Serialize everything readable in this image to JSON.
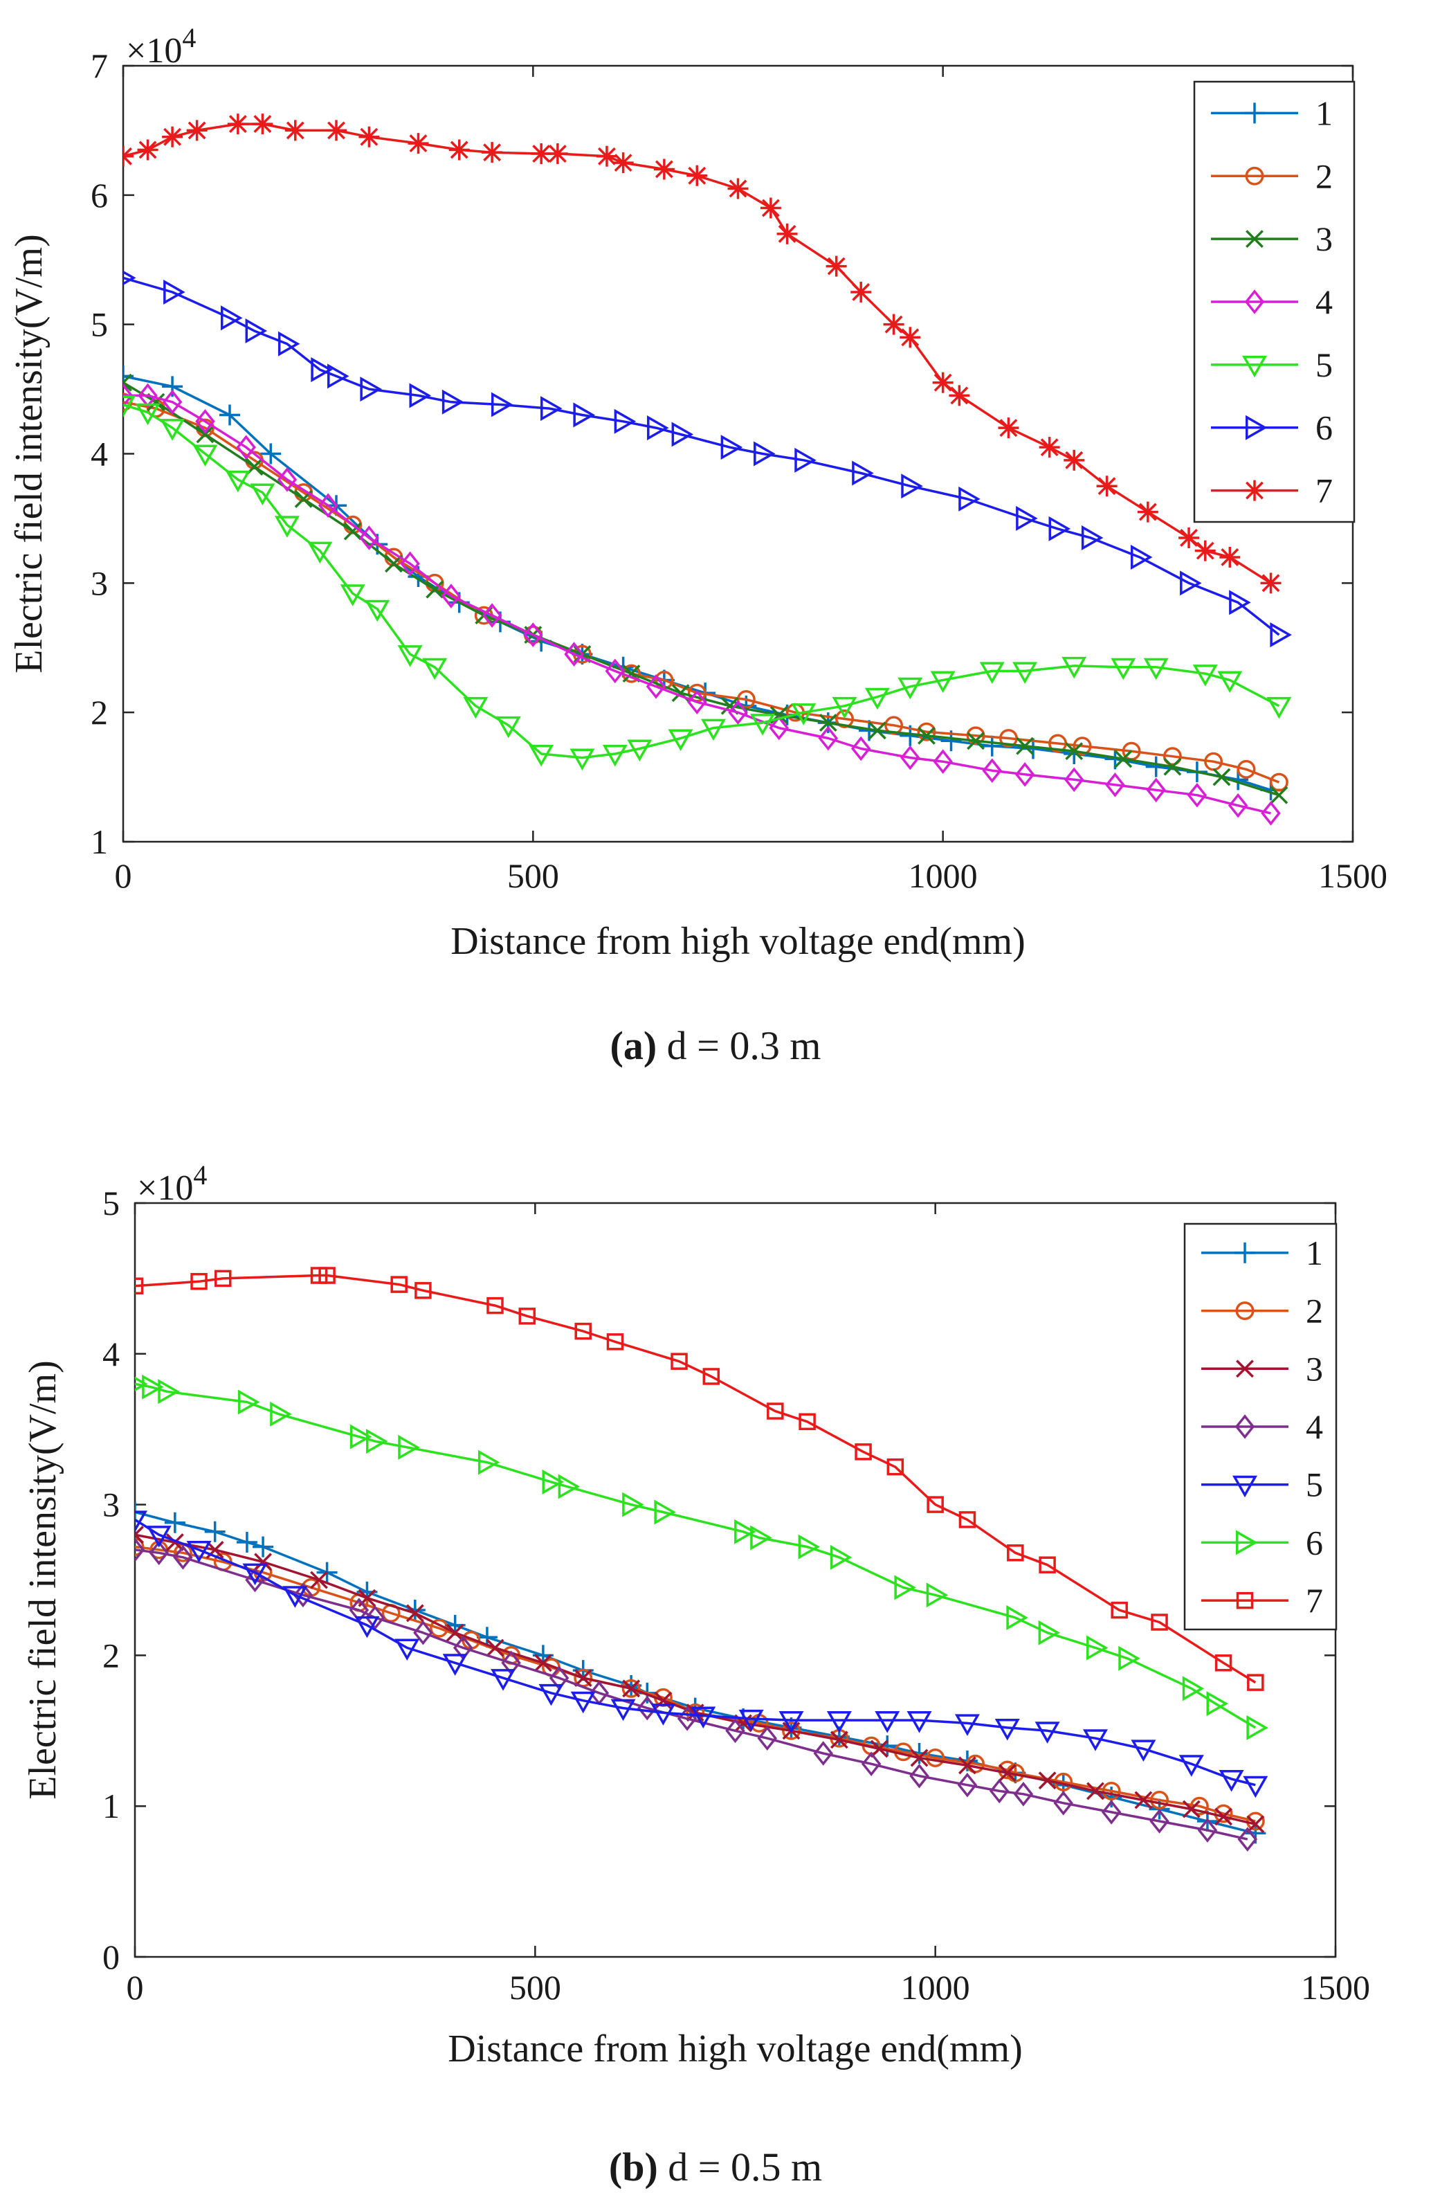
{
  "chart_data": [
    {
      "type": "line",
      "caption_bold": "(a)",
      "caption_rest": " d = 0.3 m",
      "xlabel": "Distance from high voltage end(mm)",
      "ylabel": "Electric field intensity(V/m)",
      "y_multiplier": "×10",
      "y_multiplier_exp": "4",
      "xlim": [
        0,
        1500
      ],
      "ylim": [
        1,
        7
      ],
      "x_ticks": [
        "0",
        "500",
        "1000",
        "1500"
      ],
      "y_ticks": [
        "1",
        "2",
        "3",
        "4",
        "5",
        "6",
        "7"
      ],
      "legend_position": "top-right",
      "series": [
        {
          "name": "1",
          "color": "#0072BD",
          "marker": "plus",
          "x": [
            0,
            60,
            130,
            180,
            260,
            310,
            360,
            410,
            460,
            510,
            560,
            610,
            660,
            710,
            760,
            810,
            860,
            910,
            960,
            1010,
            1060,
            1110,
            1160,
            1210,
            1260,
            1310,
            1360,
            1400
          ],
          "y": [
            4.6,
            4.52,
            4.3,
            4.0,
            3.6,
            3.3,
            3.05,
            2.85,
            2.7,
            2.55,
            2.45,
            2.35,
            2.25,
            2.15,
            2.05,
            1.98,
            1.92,
            1.86,
            1.82,
            1.78,
            1.74,
            1.72,
            1.68,
            1.64,
            1.58,
            1.54,
            1.48,
            1.4
          ]
        },
        {
          "name": "2",
          "color": "#D95319",
          "marker": "circle",
          "x": [
            0,
            40,
            100,
            160,
            220,
            280,
            330,
            380,
            440,
            500,
            560,
            620,
            660,
            700,
            760,
            820,
            880,
            940,
            980,
            1040,
            1080,
            1140,
            1170,
            1230,
            1280,
            1330,
            1370,
            1410
          ],
          "y": [
            4.4,
            4.35,
            4.2,
            3.95,
            3.7,
            3.45,
            3.2,
            3.0,
            2.75,
            2.6,
            2.45,
            2.3,
            2.25,
            2.15,
            2.1,
            2.0,
            1.95,
            1.9,
            1.85,
            1.82,
            1.8,
            1.76,
            1.74,
            1.7,
            1.66,
            1.62,
            1.56,
            1.46
          ]
        },
        {
          "name": "3",
          "color": "#217E1E",
          "marker": "x",
          "x": [
            0,
            40,
            100,
            160,
            220,
            280,
            330,
            380,
            440,
            500,
            560,
            620,
            680,
            740,
            800,
            860,
            920,
            980,
            1040,
            1100,
            1160,
            1220,
            1280,
            1340,
            1410
          ],
          "y": [
            4.55,
            4.4,
            4.15,
            3.9,
            3.65,
            3.4,
            3.15,
            2.95,
            2.75,
            2.6,
            2.45,
            2.3,
            2.15,
            2.05,
            1.98,
            1.92,
            1.86,
            1.82,
            1.78,
            1.74,
            1.7,
            1.64,
            1.58,
            1.5,
            1.36
          ]
        },
        {
          "name": "4",
          "color": "#D71FD6",
          "marker": "diamond",
          "x": [
            0,
            30,
            60,
            100,
            150,
            200,
            250,
            300,
            350,
            400,
            450,
            500,
            550,
            600,
            650,
            700,
            750,
            800,
            860,
            900,
            960,
            1000,
            1060,
            1100,
            1160,
            1210,
            1260,
            1310,
            1360,
            1400
          ],
          "y": [
            4.45,
            4.45,
            4.4,
            4.25,
            4.05,
            3.8,
            3.6,
            3.35,
            3.15,
            2.9,
            2.75,
            2.6,
            2.45,
            2.32,
            2.2,
            2.08,
            2.0,
            1.88,
            1.8,
            1.72,
            1.65,
            1.62,
            1.55,
            1.52,
            1.48,
            1.44,
            1.4,
            1.36,
            1.28,
            1.22
          ]
        },
        {
          "name": "5",
          "color": "#2CE21F",
          "marker": "triangle-down",
          "x": [
            0,
            30,
            60,
            100,
            140,
            170,
            200,
            240,
            280,
            310,
            350,
            380,
            430,
            470,
            510,
            560,
            600,
            630,
            680,
            720,
            780,
            830,
            880,
            920,
            960,
            1000,
            1060,
            1100,
            1160,
            1220,
            1260,
            1320,
            1350,
            1410
          ],
          "y": [
            4.38,
            4.32,
            4.2,
            4.0,
            3.8,
            3.7,
            3.45,
            3.25,
            2.92,
            2.8,
            2.45,
            2.35,
            2.05,
            1.9,
            1.68,
            1.65,
            1.68,
            1.72,
            1.8,
            1.88,
            1.92,
            2.0,
            2.05,
            2.12,
            2.2,
            2.25,
            2.32,
            2.32,
            2.36,
            2.35,
            2.35,
            2.3,
            2.25,
            2.05
          ]
        },
        {
          "name": "6",
          "color": "#1C1CEB",
          "marker": "triangle-right",
          "x": [
            0,
            60,
            130,
            160,
            200,
            240,
            260,
            300,
            360,
            400,
            460,
            520,
            560,
            610,
            650,
            680,
            740,
            780,
            830,
            900,
            960,
            1030,
            1100,
            1140,
            1180,
            1240,
            1300,
            1360,
            1410
          ],
          "y": [
            5.36,
            5.25,
            5.05,
            4.95,
            4.85,
            4.65,
            4.6,
            4.5,
            4.45,
            4.4,
            4.38,
            4.35,
            4.3,
            4.25,
            4.2,
            4.15,
            4.05,
            4.0,
            3.95,
            3.85,
            3.75,
            3.65,
            3.5,
            3.42,
            3.35,
            3.2,
            3.0,
            2.85,
            2.6
          ]
        },
        {
          "name": "7",
          "color": "#E81A1A",
          "marker": "asterisk",
          "x": [
            0,
            30,
            60,
            90,
            140,
            170,
            210,
            260,
            300,
            360,
            410,
            450,
            510,
            530,
            590,
            610,
            660,
            700,
            750,
            790,
            810,
            870,
            900,
            940,
            960,
            1000,
            1020,
            1080,
            1130,
            1160,
            1200,
            1250,
            1300,
            1320,
            1350,
            1400
          ],
          "y": [
            6.3,
            6.35,
            6.45,
            6.5,
            6.55,
            6.55,
            6.5,
            6.5,
            6.45,
            6.4,
            6.35,
            6.33,
            6.32,
            6.32,
            6.3,
            6.25,
            6.2,
            6.15,
            6.05,
            5.9,
            5.7,
            5.45,
            5.25,
            5.0,
            4.9,
            4.55,
            4.45,
            4.2,
            4.05,
            3.95,
            3.75,
            3.55,
            3.35,
            3.25,
            3.2,
            3.0
          ]
        }
      ]
    },
    {
      "type": "line",
      "caption_bold": "(b)",
      "caption_rest": " d = 0.5 m",
      "xlabel": "Distance from high voltage end(mm)",
      "ylabel": "Electric field intensity(V/m)",
      "y_multiplier": "×10",
      "y_multiplier_exp": "4",
      "xlim": [
        0,
        1500
      ],
      "ylim": [
        0,
        5
      ],
      "x_ticks": [
        "0",
        "500",
        "1000",
        "1500"
      ],
      "y_ticks": [
        "0",
        "1",
        "2",
        "3",
        "4",
        "5"
      ],
      "legend_position": "top-right",
      "series": [
        {
          "name": "1",
          "color": "#0072BD",
          "marker": "plus",
          "x": [
            0,
            50,
            100,
            140,
            160,
            240,
            290,
            350,
            400,
            440,
            510,
            560,
            620,
            640,
            700,
            760,
            820,
            880,
            940,
            980,
            1040,
            1100,
            1160,
            1220,
            1280,
            1340,
            1400
          ],
          "y": [
            2.95,
            2.88,
            2.82,
            2.75,
            2.72,
            2.55,
            2.42,
            2.3,
            2.2,
            2.12,
            2.0,
            1.9,
            1.8,
            1.75,
            1.65,
            1.58,
            1.52,
            1.46,
            1.4,
            1.35,
            1.3,
            1.22,
            1.14,
            1.06,
            0.98,
            0.9,
            0.82
          ]
        },
        {
          "name": "2",
          "color": "#D95319",
          "marker": "circle",
          "x": [
            0,
            30,
            60,
            110,
            160,
            220,
            280,
            320,
            380,
            420,
            470,
            520,
            560,
            620,
            660,
            700,
            780,
            820,
            880,
            920,
            960,
            1000,
            1050,
            1090,
            1100,
            1160,
            1220,
            1280,
            1330,
            1360,
            1400
          ],
          "y": [
            2.72,
            2.7,
            2.68,
            2.62,
            2.55,
            2.45,
            2.35,
            2.28,
            2.18,
            2.1,
            2.0,
            1.92,
            1.85,
            1.78,
            1.72,
            1.62,
            1.55,
            1.5,
            1.45,
            1.4,
            1.36,
            1.32,
            1.28,
            1.24,
            1.22,
            1.16,
            1.1,
            1.04,
            1.0,
            0.95,
            0.9
          ]
        },
        {
          "name": "3",
          "color": "#A2142F",
          "marker": "x",
          "x": [
            0,
            50,
            100,
            160,
            230,
            290,
            350,
            400,
            450,
            510,
            560,
            620,
            660,
            700,
            760,
            820,
            880,
            930,
            980,
            1040,
            1090,
            1140,
            1200,
            1260,
            1320,
            1360,
            1400
          ],
          "y": [
            2.8,
            2.75,
            2.7,
            2.62,
            2.5,
            2.38,
            2.28,
            2.15,
            2.05,
            1.95,
            1.85,
            1.78,
            1.7,
            1.62,
            1.55,
            1.5,
            1.44,
            1.38,
            1.32,
            1.27,
            1.22,
            1.17,
            1.1,
            1.04,
            0.98,
            0.93,
            0.88
          ]
        },
        {
          "name": "4",
          "color": "#7E2F8E",
          "marker": "diamond",
          "x": [
            0,
            30,
            60,
            150,
            210,
            280,
            300,
            360,
            410,
            470,
            530,
            580,
            640,
            690,
            750,
            790,
            860,
            920,
            980,
            1040,
            1080,
            1110,
            1160,
            1220,
            1280,
            1340,
            1390
          ],
          "y": [
            2.7,
            2.68,
            2.65,
            2.5,
            2.4,
            2.3,
            2.25,
            2.15,
            2.05,
            1.95,
            1.85,
            1.75,
            1.65,
            1.58,
            1.5,
            1.45,
            1.35,
            1.28,
            1.2,
            1.14,
            1.1,
            1.08,
            1.02,
            0.96,
            0.9,
            0.84,
            0.78
          ]
        },
        {
          "name": "5",
          "color": "#1C1CEB",
          "marker": "triangle-down",
          "x": [
            0,
            30,
            80,
            150,
            200,
            290,
            340,
            400,
            460,
            520,
            560,
            610,
            660,
            710,
            770,
            820,
            880,
            940,
            980,
            1040,
            1090,
            1140,
            1200,
            1260,
            1320,
            1370,
            1400
          ],
          "y": [
            2.9,
            2.8,
            2.7,
            2.55,
            2.4,
            2.2,
            2.05,
            1.95,
            1.85,
            1.75,
            1.7,
            1.65,
            1.62,
            1.6,
            1.58,
            1.57,
            1.57,
            1.57,
            1.57,
            1.55,
            1.52,
            1.5,
            1.45,
            1.38,
            1.28,
            1.18,
            1.14
          ]
        },
        {
          "name": "6",
          "color": "#2CE21F",
          "marker": "triangle-right",
          "x": [
            0,
            20,
            40,
            140,
            180,
            280,
            300,
            340,
            440,
            520,
            540,
            620,
            660,
            760,
            780,
            840,
            880,
            960,
            1000,
            1100,
            1140,
            1200,
            1240,
            1320,
            1350,
            1400
          ],
          "y": [
            3.8,
            3.78,
            3.75,
            3.68,
            3.6,
            3.45,
            3.42,
            3.38,
            3.28,
            3.15,
            3.12,
            3.0,
            2.95,
            2.82,
            2.78,
            2.72,
            2.65,
            2.45,
            2.4,
            2.25,
            2.15,
            2.05,
            1.98,
            1.78,
            1.68,
            1.52
          ]
        },
        {
          "name": "7",
          "color": "#E81A1A",
          "marker": "square",
          "x": [
            0,
            80,
            110,
            230,
            240,
            330,
            360,
            450,
            490,
            560,
            600,
            680,
            720,
            800,
            840,
            910,
            950,
            1000,
            1040,
            1100,
            1140,
            1230,
            1280,
            1360,
            1400
          ],
          "y": [
            4.45,
            4.48,
            4.5,
            4.52,
            4.52,
            4.46,
            4.42,
            4.32,
            4.25,
            4.15,
            4.08,
            3.95,
            3.85,
            3.62,
            3.55,
            3.35,
            3.25,
            3.0,
            2.9,
            2.68,
            2.6,
            2.3,
            2.22,
            1.95,
            1.82
          ]
        }
      ]
    }
  ]
}
